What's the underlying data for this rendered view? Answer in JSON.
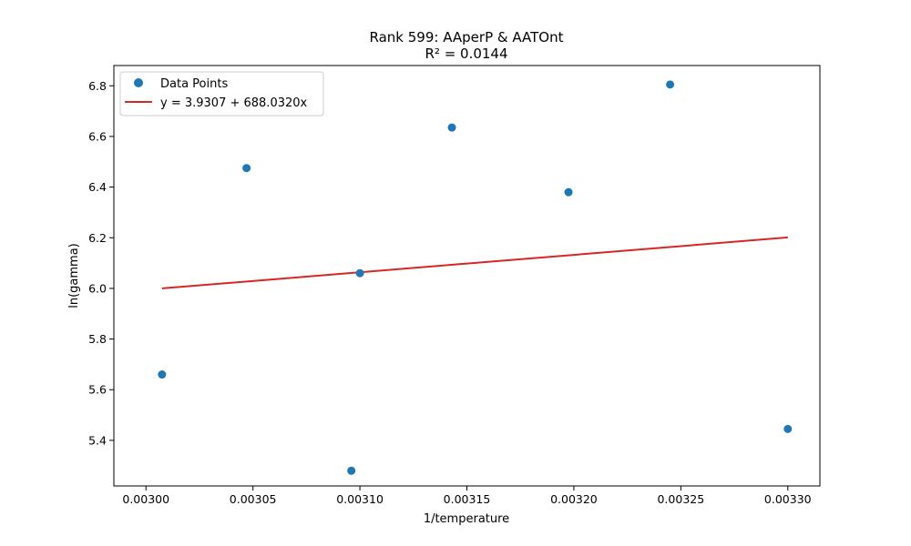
{
  "chart_data": {
    "type": "scatter",
    "title": "Rank 599: AAperP & AATOnt",
    "subtitle": "R² = 0.0144",
    "xlabel": "1/temperature",
    "ylabel": "ln(gamma)",
    "xlim": [
      0.002985,
      0.003315
    ],
    "ylim": [
      5.22,
      6.88
    ],
    "x_ticks": [
      0.003,
      0.00305,
      0.0031,
      0.00315,
      0.0032,
      0.00325,
      0.0033
    ],
    "x_tick_labels": [
      "0.00300",
      "0.00305",
      "0.00310",
      "0.00315",
      "0.00320",
      "0.00325",
      "0.00330"
    ],
    "y_ticks": [
      5.4,
      5.6,
      5.8,
      6.0,
      6.2,
      6.4,
      6.6,
      6.8
    ],
    "y_tick_labels": [
      "5.4",
      "5.6",
      "5.8",
      "6.0",
      "6.2",
      "6.4",
      "6.6",
      "6.8"
    ],
    "grid": false,
    "legend_position": "upper-left",
    "series": [
      {
        "name": "Data Points",
        "kind": "scatter",
        "color": "#1f77b4",
        "points": [
          {
            "x": 0.0030075,
            "y": 5.66
          },
          {
            "x": 0.003047,
            "y": 6.475
          },
          {
            "x": 0.003096,
            "y": 5.28
          },
          {
            "x": 0.0031,
            "y": 6.06
          },
          {
            "x": 0.003143,
            "y": 6.635
          },
          {
            "x": 0.0031975,
            "y": 6.38
          },
          {
            "x": 0.003245,
            "y": 6.805
          },
          {
            "x": 0.0033,
            "y": 5.445
          }
        ]
      },
      {
        "name": "y = 3.9307 + 688.0320x",
        "kind": "line",
        "color": "#d62728",
        "intercept": 3.9307,
        "slope": 688.032,
        "x_range": [
          0.0030075,
          0.0033
        ]
      }
    ]
  }
}
